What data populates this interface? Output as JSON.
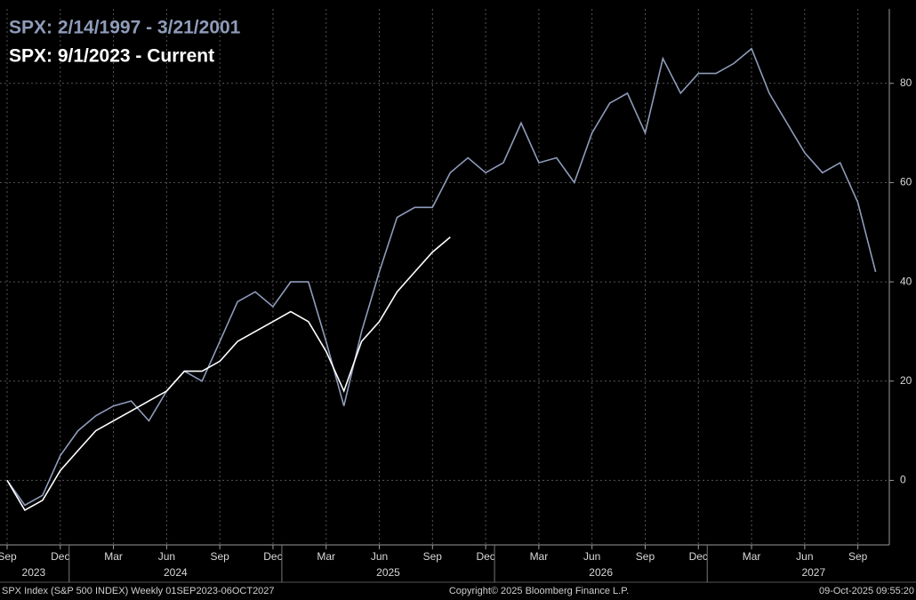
{
  "chart_data": {
    "type": "line",
    "categories": [
      "Sep",
      null,
      null,
      "Dec",
      null,
      null,
      "Mar",
      null,
      null,
      "Jun",
      null,
      null,
      "Sep",
      null,
      null,
      "Dec",
      null,
      null,
      "Mar",
      null,
      null,
      "Jun",
      null,
      null,
      "Sep",
      null,
      null,
      "Dec",
      null,
      null,
      "Mar",
      null,
      null,
      "Jun",
      null,
      null,
      "Sep",
      null,
      null,
      "Dec",
      null,
      null,
      "Mar",
      null,
      null,
      "Jun",
      null,
      null,
      "Sep",
      null
    ],
    "category_years": [
      null,
      "2023",
      null,
      null,
      null,
      null,
      null,
      null,
      null,
      "2024",
      null,
      null,
      null,
      null,
      null,
      null,
      null,
      null,
      null,
      null,
      null,
      "2025",
      null,
      null,
      null,
      null,
      null,
      null,
      null,
      null,
      null,
      null,
      null,
      "2026",
      null,
      null,
      null,
      null,
      null,
      null,
      null,
      null,
      null,
      null,
      null,
      "2027",
      null,
      null,
      null,
      null
    ],
    "series": [
      {
        "name": "SPX: 2/14/1997 - 3/21/2001",
        "color": "#8e9cba",
        "values": [
          0,
          -5,
          -3,
          5,
          10,
          13,
          15,
          16,
          12,
          18,
          22,
          20,
          28,
          36,
          38,
          35,
          40,
          40,
          28,
          15,
          30,
          42,
          53,
          55,
          55,
          62,
          65,
          62,
          64,
          72,
          64,
          65,
          60,
          70,
          76,
          78,
          70,
          85,
          78,
          82,
          82,
          84,
          87,
          78,
          72,
          66,
          62,
          64,
          56,
          42
        ]
      },
      {
        "name": "SPX: 9/1/2023 - Current",
        "color": "#ffffff",
        "values": [
          0,
          -6,
          -4,
          2,
          6,
          10,
          12,
          14,
          16,
          18,
          22,
          22,
          24,
          28,
          30,
          32,
          34,
          32,
          26,
          18,
          28,
          32,
          38,
          42,
          46,
          49,
          null,
          null,
          null,
          null,
          null,
          null,
          null,
          null,
          null,
          null,
          null,
          null,
          null,
          null,
          null,
          null,
          null,
          null,
          null,
          null,
          null,
          null,
          null,
          null
        ]
      }
    ],
    "ylim": [
      -13,
      95
    ],
    "yticks": [
      0,
      20,
      40,
      60,
      80
    ],
    "grid": true,
    "footer_left": "SPX Index (S&P 500 INDEX) Weekly 01SEP2023-06OCT2027",
    "footer_center": "Copyright© 2025 Bloomberg Finance L.P.",
    "footer_right": "09-Oct-2025 09:55:20"
  }
}
